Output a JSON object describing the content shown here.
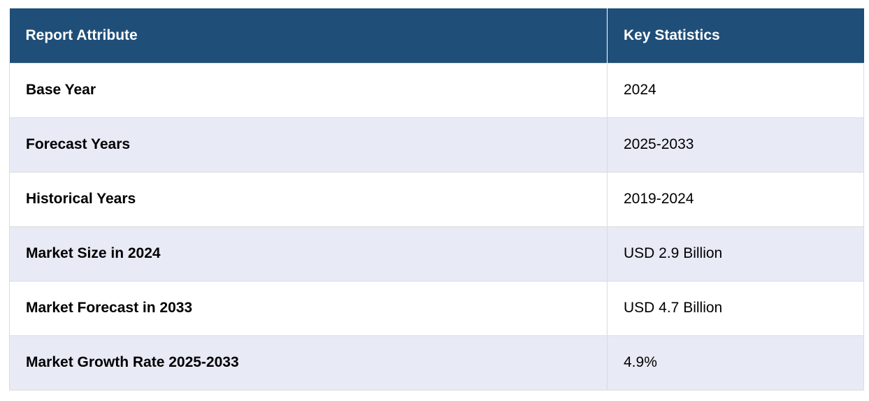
{
  "table": {
    "headers": [
      "Report Attribute",
      "Key Statistics"
    ],
    "rows": [
      {
        "attribute": "Base Year",
        "value": "2024"
      },
      {
        "attribute": "Forecast Years",
        "value": "2025-2033"
      },
      {
        "attribute": "Historical Years",
        "value": "2019-2024"
      },
      {
        "attribute": "Market Size in 2024",
        "value": "USD 2.9 Billion"
      },
      {
        "attribute": "Market Forecast in 2033",
        "value": "USD 4.7 Billion"
      },
      {
        "attribute": "Market Growth Rate 2025-2033",
        "value": "4.9%"
      }
    ]
  },
  "colors": {
    "header_bg": "#1f4e79",
    "header_text": "#ffffff",
    "row_alt_bg": "#e8eaf6",
    "border": "#dcdcdc"
  }
}
